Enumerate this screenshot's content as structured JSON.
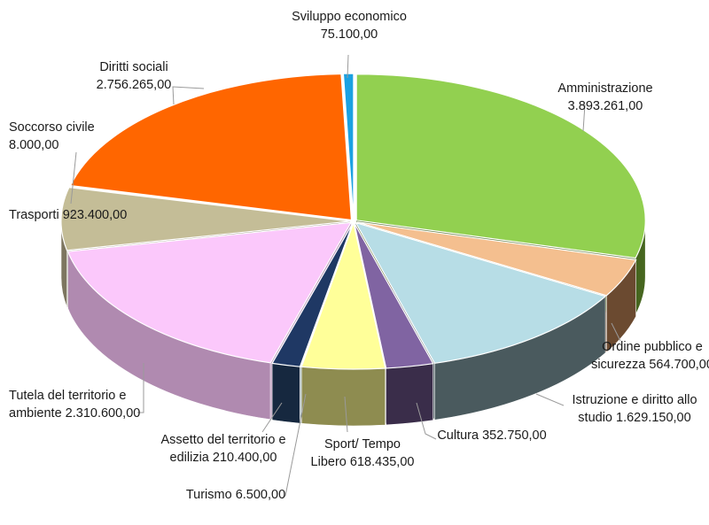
{
  "chart_data": {
    "type": "pie",
    "title": "",
    "style": "3d-exploded",
    "slices": [
      {
        "name": "Amministrazione",
        "value_label": "3.893.261,00",
        "value": 3893261.0,
        "color": "#92d050",
        "side": "#46661f"
      },
      {
        "name": "Ordine pubblico e sicurezza",
        "value_label": "564.700,00",
        "value": 564700.0,
        "color": "#f4bf8f",
        "side": "#6b4a30"
      },
      {
        "name": "Istruzione e diritto allo studio",
        "value_label": "1.629.150,00",
        "value": 1629150.0,
        "color": "#b7dde6",
        "side": "#4a5a5e"
      },
      {
        "name": "Cultura",
        "value_label": "352.750,00",
        "value": 352750.0,
        "color": "#8064a2",
        "side": "#3a2d4a"
      },
      {
        "name": "Sport/ Tempo Libero",
        "value_label": "618.435,00",
        "value": 618435.0,
        "color": "#ffff99",
        "side": "#8e8c50"
      },
      {
        "name": "Turismo",
        "value_label": "6.500,00",
        "value": 6500.0,
        "color": "#4bacc6",
        "side": "#254f5a"
      },
      {
        "name": "Assetto del territorio e edilizia",
        "value_label": "210.400,00",
        "value": 210400.0,
        "color": "#1f3864",
        "side": "#16283f"
      },
      {
        "name": "Tutela del territorio e ambiente",
        "value_label": "2.310.600,00",
        "value": 2310600.0,
        "color": "#fbc8fb",
        "side": "#b08ab0"
      },
      {
        "name": "Trasporti",
        "value_label": "923.400,00",
        "value": 923400.0,
        "color": "#c4bd97",
        "side": "#7d7660"
      },
      {
        "name": "Soccorso civile",
        "value_label": "8.000,00",
        "value": 8000.0,
        "color": "#2e75b6",
        "side": "#1c456b"
      },
      {
        "name": "Diritti sociali",
        "value_label": "2.756.265,00",
        "value": 2756265.0,
        "color": "#ff6600",
        "side": "#a84300"
      },
      {
        "name": "Sviluppo economico",
        "value_label": "75.100,00",
        "value": 75100.0,
        "color": "#1ba1e2",
        "side": "#10628a"
      }
    ],
    "labels": [
      {
        "lines": [
          "Amministrazione",
          "3.893.261,00"
        ]
      },
      {
        "lines": [
          "Ordine pubblico e",
          "sicurezza 564.700,00"
        ]
      },
      {
        "lines": [
          "Istruzione e diritto allo",
          "studio 1.629.150,00"
        ]
      },
      {
        "lines": [
          "Cultura  352.750,00"
        ]
      },
      {
        "lines": [
          "Sport/ Tempo",
          "Libero 618.435,00"
        ]
      },
      {
        "lines": [
          "Turismo 6.500,00"
        ]
      },
      {
        "lines": [
          "Assetto del territorio e",
          "edilizia 210.400,00"
        ]
      },
      {
        "lines": [
          "Tutela del territorio e",
          "ambiente 2.310.600,00"
        ]
      },
      {
        "lines": [
          "Trasporti 923.400,00"
        ]
      },
      {
        "lines": [
          "Soccorso civile",
          "8.000,00"
        ]
      },
      {
        "lines": [
          "Diritti sociali",
          "2.756.265,00"
        ]
      },
      {
        "lines": [
          "Sviluppo economico",
          "75.100,00"
        ]
      }
    ]
  }
}
